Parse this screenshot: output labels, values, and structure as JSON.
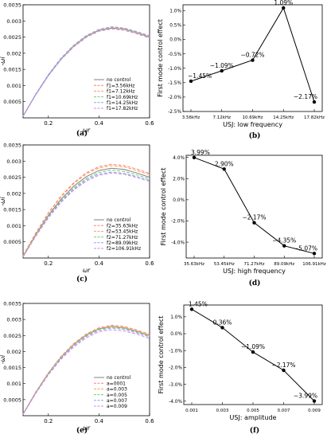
{
  "chart_data": [
    {
      "id": "a",
      "type": "line",
      "panel_label": "(a)",
      "xlabel": "ωr",
      "ylabel": "-ωi",
      "xlim": [
        0.1,
        0.6
      ],
      "ylim": [
        0,
        0.0035
      ],
      "xticks": [
        0.2,
        0.4,
        0.6
      ],
      "xtick_labels": [
        "0.2",
        "0.4",
        "0.6"
      ],
      "yticks": [
        0.0005,
        0.001,
        0.0015,
        0.002,
        0.0025,
        0.003,
        0.0035
      ],
      "ytick_labels": [
        "0.0005",
        "0.001",
        "0.0015",
        "0.002",
        "0.0025",
        "0.003",
        "0.0035"
      ],
      "legend": "bottom-right",
      "x": [
        0.1,
        0.15,
        0.2,
        0.25,
        0.3,
        0.35,
        0.4,
        0.45,
        0.5,
        0.55,
        0.6
      ],
      "series": [
        {
          "name": "no control",
          "color": "#808080",
          "dash": "solid",
          "values": [
            5e-05,
            0.00072,
            0.00132,
            0.00182,
            0.00222,
            0.00252,
            0.00271,
            0.00278,
            0.00274,
            0.00263,
            0.0025
          ]
        },
        {
          "name": "f1=3.56kHz",
          "color": "#ff7f7f",
          "dash": "dashed",
          "values": [
            6e-05,
            0.00073,
            0.00133,
            0.00183,
            0.00223,
            0.00253,
            0.00272,
            0.00279,
            0.00275,
            0.00264,
            0.00251
          ]
        },
        {
          "name": "f1=7.12kHz",
          "color": "#ff9f4f",
          "dash": "dashed",
          "values": [
            6e-05,
            0.00073,
            0.00133,
            0.00183,
            0.00223,
            0.00253,
            0.00272,
            0.0028,
            0.00276,
            0.00265,
            0.00252
          ]
        },
        {
          "name": "f1=10.69kHz",
          "color": "#6fcf6f",
          "dash": "dashed",
          "values": [
            6e-05,
            0.00073,
            0.00133,
            0.00184,
            0.00224,
            0.00254,
            0.00273,
            0.00281,
            0.00277,
            0.00266,
            0.00253
          ]
        },
        {
          "name": "f1=14.25kHz",
          "color": "#8f9fff",
          "dash": "dashed",
          "values": [
            6e-05,
            0.00074,
            0.00134,
            0.00185,
            0.00225,
            0.00255,
            0.00274,
            0.00282,
            0.00278,
            0.00267,
            0.00254
          ]
        },
        {
          "name": "f1=17.82kHz",
          "color": "#cf8fdf",
          "dash": "dashed",
          "values": [
            5e-05,
            0.00071,
            0.0013,
            0.0018,
            0.00219,
            0.00249,
            0.00268,
            0.00275,
            0.00271,
            0.0026,
            0.00247
          ]
        }
      ]
    },
    {
      "id": "b",
      "type": "line",
      "panel_label": "(b)",
      "xlabel": "USJ: low frequency",
      "ylabel": "First mode control effect",
      "ylim": [
        -2.5,
        1.2
      ],
      "yticks": [
        -2.5,
        -2.0,
        -1.5,
        -1.0,
        -0.5,
        0.0,
        0.5,
        1.0
      ],
      "ytick_labels": [
        "-2.5%",
        "-2.0%",
        "-1.5%",
        "-1.0%",
        "-0.5%",
        "0.0%",
        "0.5%",
        "1.0%"
      ],
      "categories": [
        "3.56kHz",
        "7.12kHz",
        "10.69kHz",
        "14.25kHz",
        "17.82kHz"
      ],
      "values": [
        -1.45,
        -1.09,
        -0.72,
        1.09,
        -2.17
      ],
      "data_labels": [
        "−1.45%",
        "−1.09%",
        "−0.72%",
        "1.09%",
        "−2.17%"
      ]
    },
    {
      "id": "c",
      "type": "line",
      "panel_label": "(c)",
      "xlabel": "ωr",
      "ylabel": "-ωi",
      "xlim": [
        0.1,
        0.6
      ],
      "ylim": [
        0,
        0.0035
      ],
      "xticks": [
        0.2,
        0.4,
        0.6
      ],
      "xtick_labels": [
        "0.2",
        "0.4",
        "0.6"
      ],
      "yticks": [
        0.0005,
        0.001,
        0.0015,
        0.002,
        0.0025,
        0.003,
        0.0035
      ],
      "ytick_labels": [
        "0.0005",
        "0.001",
        "0.0015",
        "0.002",
        "0.0025",
        "0.003",
        "0.0035"
      ],
      "legend": "bottom-right",
      "x": [
        0.1,
        0.15,
        0.2,
        0.25,
        0.3,
        0.35,
        0.4,
        0.45,
        0.5,
        0.55,
        0.6
      ],
      "series": [
        {
          "name": "no control",
          "color": "#808080",
          "dash": "solid",
          "values": [
            5e-05,
            0.00072,
            0.00132,
            0.00182,
            0.00222,
            0.00252,
            0.00271,
            0.00278,
            0.00274,
            0.00263,
            0.0025
          ]
        },
        {
          "name": "f2=35.63kHz",
          "color": "#ff7f7f",
          "dash": "dashed",
          "values": [
            8e-05,
            0.00078,
            0.0014,
            0.00192,
            0.00233,
            0.00264,
            0.00283,
            0.0029,
            0.00286,
            0.00275,
            0.00262
          ]
        },
        {
          "name": "f2=53.45kHz",
          "color": "#ff9f4f",
          "dash": "dashed",
          "values": [
            8e-05,
            0.00077,
            0.00138,
            0.00189,
            0.0023,
            0.0026,
            0.00279,
            0.00286,
            0.00282,
            0.00271,
            0.00258
          ]
        },
        {
          "name": "f2=71.27kHz",
          "color": "#6fcf6f",
          "dash": "dashed",
          "values": [
            5e-05,
            0.0007,
            0.00129,
            0.00178,
            0.00217,
            0.00246,
            0.00265,
            0.00272,
            0.00268,
            0.00257,
            0.00245
          ]
        },
        {
          "name": "f2=89.09kHz",
          "color": "#8f9fff",
          "dash": "dashed",
          "values": [
            4e-05,
            0.00069,
            0.00127,
            0.00175,
            0.00213,
            0.00242,
            0.0026,
            0.00266,
            0.00262,
            0.00252,
            0.0024
          ]
        },
        {
          "name": "f2=106.91kHz",
          "color": "#cf8fdf",
          "dash": "dashed",
          "values": [
            3e-05,
            0.00067,
            0.00124,
            0.00172,
            0.0021,
            0.00238,
            0.00256,
            0.00263,
            0.00259,
            0.00249,
            0.00237
          ]
        }
      ]
    },
    {
      "id": "d",
      "type": "line",
      "panel_label": "(d)",
      "xlabel": "USJ: high frequency",
      "ylabel": "First mode control effect",
      "ylim": [
        -5.5,
        4.2
      ],
      "yticks": [
        -4.0,
        -2.0,
        0.0,
        2.0,
        4.0
      ],
      "ytick_labels": [
        "-4.0%",
        "-2.0%",
        "0.0%",
        "2.0%",
        "4.0%"
      ],
      "categories": [
        "35.63kHz",
        "53.45kHz",
        "71.27kHz",
        "89.09kHz",
        "106.91kHz"
      ],
      "values": [
        3.99,
        2.9,
        -2.17,
        -4.35,
        -5.07
      ],
      "data_labels": [
        "3.99%",
        "2.90%",
        "−2.17%",
        "−4.35%",
        "−5.07%"
      ]
    },
    {
      "id": "e",
      "type": "line",
      "panel_label": "(e)",
      "xlabel": "ωr",
      "ylabel": "-ωi",
      "xlim": [
        0.1,
        0.6
      ],
      "ylim": [
        0,
        0.0035
      ],
      "xticks": [
        0.2,
        0.4,
        0.6
      ],
      "xtick_labels": [
        "0.2",
        "0.4",
        "0.6"
      ],
      "yticks": [
        0.0005,
        0.001,
        0.0015,
        0.002,
        0.0025,
        0.003,
        0.0035
      ],
      "ytick_labels": [
        "0.0005",
        "0.001",
        "0.0015",
        "0.002",
        "0.0025",
        "0.003",
        "0.0035"
      ],
      "legend": "bottom-right",
      "x": [
        0.1,
        0.15,
        0.2,
        0.25,
        0.3,
        0.35,
        0.4,
        0.45,
        0.5,
        0.55,
        0.6
      ],
      "series": [
        {
          "name": "no control",
          "color": "#808080",
          "dash": "solid",
          "values": [
            5e-05,
            0.00072,
            0.00132,
            0.00182,
            0.00222,
            0.00252,
            0.00271,
            0.00278,
            0.00274,
            0.00263,
            0.0025
          ]
        },
        {
          "name": "a=0001",
          "color": "#ff7f7f",
          "dash": "dashed",
          "values": [
            6e-05,
            0.00074,
            0.00134,
            0.00185,
            0.00225,
            0.00255,
            0.00274,
            0.00282,
            0.00278,
            0.00267,
            0.00254
          ]
        },
        {
          "name": "a=0.003",
          "color": "#ff9f4f",
          "dash": "dashed",
          "values": [
            6e-05,
            0.00073,
            0.00133,
            0.00183,
            0.00223,
            0.00253,
            0.00272,
            0.00279,
            0.00275,
            0.00264,
            0.00251
          ]
        },
        {
          "name": "a=0.005",
          "color": "#6fcf6f",
          "dash": "dashed",
          "values": [
            5e-05,
            0.00071,
            0.00131,
            0.00181,
            0.0022,
            0.0025,
            0.00269,
            0.00276,
            0.00272,
            0.00261,
            0.00248
          ]
        },
        {
          "name": "a=0.007",
          "color": "#8f9fff",
          "dash": "dashed",
          "values": [
            5e-05,
            0.0007,
            0.00129,
            0.00179,
            0.00218,
            0.00247,
            0.00266,
            0.00273,
            0.00269,
            0.00258,
            0.00246
          ]
        },
        {
          "name": "a=0.009",
          "color": "#cf8fdf",
          "dash": "dashed",
          "values": [
            4e-05,
            0.00069,
            0.00127,
            0.00176,
            0.00214,
            0.00243,
            0.00262,
            0.00268,
            0.00264,
            0.00254,
            0.00241
          ]
        }
      ]
    },
    {
      "id": "f",
      "type": "line",
      "panel_label": "(f)",
      "xlabel": "USJ: amplitude",
      "ylabel": "First mode control effect",
      "ylim": [
        -4.2,
        1.7
      ],
      "yticks": [
        -4.0,
        -3.0,
        -2.0,
        -1.0,
        0.0,
        1.0
      ],
      "ytick_labels": [
        "-4.0%",
        "-3.0%",
        "-2.0%",
        "-1.0%",
        "0.0%",
        "1.0%"
      ],
      "categories": [
        "0.001",
        "0.003",
        "0.005",
        "0.007",
        "0.009"
      ],
      "values": [
        1.45,
        0.36,
        -1.09,
        -2.17,
        -3.99
      ],
      "data_labels": [
        "1.45%",
        "0.36%",
        "−1.09%",
        "−2.17%",
        "−3.99%"
      ]
    }
  ]
}
